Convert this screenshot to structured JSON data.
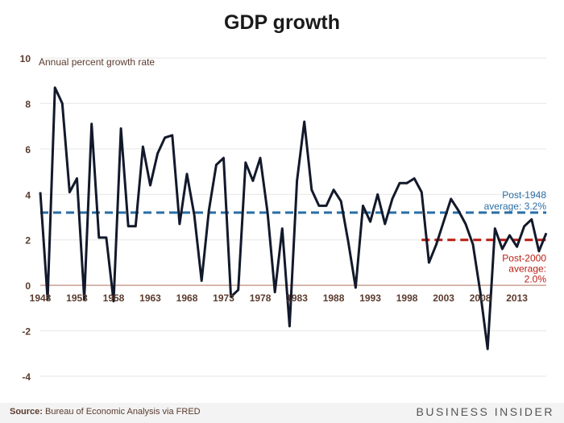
{
  "title": "GDP growth",
  "source_label": "Source:",
  "source_text": "Bureau of Economic Analysis via FRED",
  "brand": "BUSINESS INSIDER",
  "colors": {
    "line": "#12192b",
    "post1948": "#2a6ea6",
    "post2000": "#b81d13",
    "zero_line": "#c9a190",
    "grid": "#e6e6e6",
    "text": "#5a3b2e"
  },
  "chart_data": {
    "type": "line",
    "title": "GDP growth",
    "ylabel": "Annual percent growth rate",
    "xlabel": "",
    "ylim": [
      -4,
      10
    ],
    "xlim": [
      1948,
      2017
    ],
    "yticks": [
      -4,
      -2,
      0,
      2,
      4,
      6,
      8,
      10
    ],
    "xticks": [
      1948,
      1953,
      1958,
      1963,
      1968,
      1973,
      1978,
      1983,
      1988,
      1993,
      1998,
      2003,
      2008,
      2013
    ],
    "grid": true,
    "series": [
      {
        "x": [
          1948,
          1949,
          1950,
          1951,
          1952,
          1953,
          1954,
          1955,
          1956,
          1957,
          1958,
          1959,
          1960,
          1961,
          1962,
          1963,
          1964,
          1965,
          1966,
          1967,
          1968,
          1969,
          1970,
          1971,
          1972,
          1973,
          1974,
          1975,
          1976,
          1977,
          1978,
          1979,
          1980,
          1981,
          1982,
          1983,
          1984,
          1985,
          1986,
          1987,
          1988,
          1989,
          1990,
          1991,
          1992,
          1993,
          1994,
          1995,
          1996,
          1997,
          1998,
          1999,
          2000,
          2001,
          2002,
          2003,
          2004,
          2005,
          2006,
          2007,
          2008,
          2009,
          2010,
          2011,
          2012,
          2013,
          2014,
          2015,
          2016,
          2017
        ],
        "values": [
          4.1,
          -0.6,
          8.7,
          8.0,
          4.1,
          4.7,
          -0.6,
          7.1,
          2.1,
          2.1,
          -0.7,
          6.9,
          2.6,
          2.6,
          6.1,
          4.4,
          5.8,
          6.5,
          6.6,
          2.7,
          4.9,
          3.1,
          0.2,
          3.3,
          5.3,
          5.6,
          -0.5,
          -0.2,
          5.4,
          4.6,
          5.6,
          3.2,
          -0.3,
          2.5,
          -1.8,
          4.6,
          7.2,
          4.2,
          3.5,
          3.5,
          4.2,
          3.7,
          1.9,
          -0.1,
          3.5,
          2.8,
          4.0,
          2.7,
          3.8,
          4.5,
          4.5,
          4.7,
          4.1,
          1.0,
          1.8,
          2.8,
          3.8,
          3.3,
          2.7,
          1.8,
          -0.3,
          -2.8,
          2.5,
          1.6,
          2.2,
          1.7,
          2.6,
          2.9,
          1.5,
          2.3
        ]
      }
    ],
    "reference_lines": [
      {
        "label_line1": "Post-1948",
        "label_line2": "average: 3.2%",
        "value": 3.2,
        "from": 1948,
        "to": 2017
      },
      {
        "label_line1": "Post-2000",
        "label_line2": "average:",
        "label_line3": "2.0%",
        "value": 2.0,
        "from": 2000,
        "to": 2017
      }
    ]
  }
}
